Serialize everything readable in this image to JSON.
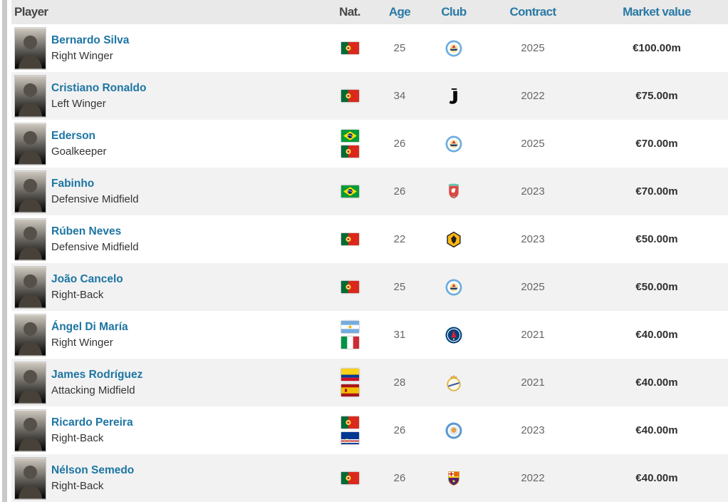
{
  "colors": {
    "link_blue": "#1d75a3",
    "header_link_blue": "#2a79a5",
    "header_bg": "#e9e9e9",
    "row_stripe": "#f2f2f2",
    "value_text": "#2f2f2f",
    "muted_text": "#676767"
  },
  "table": {
    "headers": {
      "player": "Player",
      "nat": "Nat.",
      "age": "Age",
      "club": "Club",
      "contract": "Contract",
      "value": "Market value"
    },
    "rows": [
      {
        "name": "Bernardo Silva",
        "position": "Right Winger",
        "age": "25",
        "contract": "2025",
        "value": "€100.00m",
        "flags": [
          {
            "code": "pt",
            "name": "portugal"
          }
        ],
        "club": {
          "code": "man-city",
          "name": "manchester-city"
        }
      },
      {
        "name": "Cristiano Ronaldo",
        "position": "Left Winger",
        "age": "34",
        "contract": "2022",
        "value": "€75.00m",
        "flags": [
          {
            "code": "pt",
            "name": "portugal"
          }
        ],
        "club": {
          "code": "juventus",
          "name": "juventus"
        }
      },
      {
        "name": "Ederson",
        "position": "Goalkeeper",
        "age": "26",
        "contract": "2025",
        "value": "€70.00m",
        "flags": [
          {
            "code": "br",
            "name": "brazil"
          },
          {
            "code": "pt",
            "name": "portugal"
          }
        ],
        "club": {
          "code": "man-city",
          "name": "manchester-city"
        }
      },
      {
        "name": "Fabinho",
        "position": "Defensive Midfield",
        "age": "26",
        "contract": "2023",
        "value": "€70.00m",
        "flags": [
          {
            "code": "br",
            "name": "brazil"
          }
        ],
        "club": {
          "code": "liverpool",
          "name": "liverpool"
        }
      },
      {
        "name": "Rúben Neves",
        "position": "Defensive Midfield",
        "age": "22",
        "contract": "2023",
        "value": "€50.00m",
        "flags": [
          {
            "code": "pt",
            "name": "portugal"
          }
        ],
        "club": {
          "code": "wolves",
          "name": "wolverhampton"
        }
      },
      {
        "name": "João Cancelo",
        "position": "Right-Back",
        "age": "25",
        "contract": "2025",
        "value": "€50.00m",
        "flags": [
          {
            "code": "pt",
            "name": "portugal"
          }
        ],
        "club": {
          "code": "man-city",
          "name": "manchester-city"
        }
      },
      {
        "name": "Ángel Di María",
        "position": "Right Winger",
        "age": "31",
        "contract": "2021",
        "value": "€40.00m",
        "flags": [
          {
            "code": "ar",
            "name": "argentina"
          },
          {
            "code": "it",
            "name": "italy"
          }
        ],
        "club": {
          "code": "psg",
          "name": "paris-saint-germain"
        }
      },
      {
        "name": "James Rodríguez",
        "position": "Attacking Midfield",
        "age": "28",
        "contract": "2021",
        "value": "€40.00m",
        "flags": [
          {
            "code": "co",
            "name": "colombia"
          },
          {
            "code": "es",
            "name": "spain"
          }
        ],
        "club": {
          "code": "real-madrid",
          "name": "real-madrid"
        }
      },
      {
        "name": "Ricardo Pereira",
        "position": "Right-Back",
        "age": "26",
        "contract": "2023",
        "value": "€40.00m",
        "flags": [
          {
            "code": "pt",
            "name": "portugal"
          },
          {
            "code": "cv",
            "name": "cape-verde"
          }
        ],
        "club": {
          "code": "leicester",
          "name": "leicester-city"
        }
      },
      {
        "name": "Nélson Semedo",
        "position": "Right-Back",
        "age": "26",
        "contract": "2022",
        "value": "€40.00m",
        "flags": [
          {
            "code": "pt",
            "name": "portugal"
          }
        ],
        "club": {
          "code": "barcelona",
          "name": "fc-barcelona"
        }
      }
    ]
  }
}
